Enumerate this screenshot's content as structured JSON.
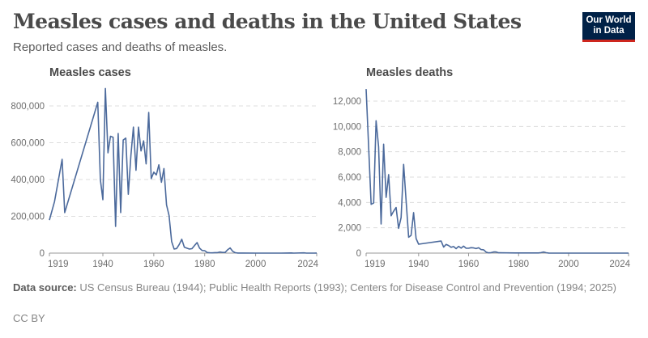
{
  "header": {
    "title": "Measles cases and deaths in the United States",
    "subtitle": "Reported cases and deaths of measles.",
    "logo_text": "Our World in Data"
  },
  "colors": {
    "line": "#4c6a9c",
    "grid": "#dddddd",
    "logo_bg": "#002147",
    "logo_accent": "#ce261e"
  },
  "chart_data": [
    {
      "type": "line",
      "title": "Measles cases",
      "xlabel": "",
      "ylabel": "",
      "xlim": [
        1919,
        2024
      ],
      "ylim": [
        0,
        900000
      ],
      "grid": "horizontal-dashed",
      "x_ticks": [
        "1919",
        "1940",
        "1960",
        "1980",
        "2000",
        "2024"
      ],
      "y_ticks": [
        {
          "value": 0,
          "label": "0"
        },
        {
          "value": 200000,
          "label": "200,000"
        },
        {
          "value": 400000,
          "label": "400,000"
        },
        {
          "value": 600000,
          "label": "600,000"
        },
        {
          "value": 800000,
          "label": "800,000"
        }
      ],
      "x": [
        1919,
        1921,
        1924,
        1925,
        1938,
        1939,
        1940,
        1941,
        1942,
        1943,
        1944,
        1945,
        1946,
        1947,
        1948,
        1949,
        1950,
        1951,
        1952,
        1953,
        1954,
        1955,
        1956,
        1957,
        1958,
        1959,
        1960,
        1961,
        1962,
        1963,
        1964,
        1965,
        1966,
        1967,
        1968,
        1969,
        1970,
        1971,
        1972,
        1973,
        1974,
        1975,
        1976,
        1977,
        1978,
        1979,
        1980,
        1981,
        1982,
        1983,
        1984,
        1985,
        1986,
        1987,
        1988,
        1989,
        1990,
        1991,
        1992,
        1993,
        1995,
        2000,
        2005,
        2010,
        2014,
        2015,
        2019,
        2020,
        2023,
        2024
      ],
      "values": [
        180000,
        280000,
        510000,
        220000,
        820000,
        400000,
        290000,
        895000,
        545000,
        635000,
        630000,
        145000,
        650000,
        220000,
        615000,
        625000,
        320000,
        530000,
        685000,
        450000,
        685000,
        555000,
        610000,
        485000,
        765000,
        405000,
        440000,
        425000,
        480000,
        385000,
        460000,
        262000,
        205000,
        63000,
        22000,
        25000,
        47000,
        75000,
        32000,
        27000,
        22000,
        24000,
        41000,
        57000,
        27000,
        14000,
        13000,
        3000,
        1700,
        1500,
        2600,
        2800,
        6300,
        3700,
        3400,
        18000,
        28000,
        9600,
        2200,
        300,
        300,
        100,
        70,
        60,
        670,
        190,
        1274,
        13,
        60,
        285
      ]
    },
    {
      "type": "line",
      "title": "Measles deaths",
      "xlabel": "",
      "ylabel": "",
      "xlim": [
        1919,
        2024
      ],
      "ylim": [
        0,
        13000
      ],
      "grid": "horizontal-dashed",
      "x_ticks": [
        "1919",
        "1940",
        "1960",
        "1980",
        "2000",
        "2024"
      ],
      "y_ticks": [
        {
          "value": 0,
          "label": "0"
        },
        {
          "value": 2000,
          "label": "2,000"
        },
        {
          "value": 4000,
          "label": "4,000"
        },
        {
          "value": 6000,
          "label": "6,000"
        },
        {
          "value": 8000,
          "label": "8,000"
        },
        {
          "value": 10000,
          "label": "10,000"
        },
        {
          "value": 12000,
          "label": "12,000"
        }
      ],
      "x": [
        1919,
        1921,
        1922,
        1923,
        1924,
        1925,
        1926,
        1927,
        1928,
        1929,
        1930,
        1931,
        1932,
        1933,
        1934,
        1935,
        1936,
        1937,
        1938,
        1939,
        1940,
        1949,
        1950,
        1951,
        1952,
        1953,
        1954,
        1955,
        1956,
        1957,
        1958,
        1959,
        1960,
        1961,
        1962,
        1963,
        1964,
        1965,
        1966,
        1967,
        1968,
        1969,
        1970,
        1971,
        1972,
        1975,
        1980,
        1988,
        1989,
        1990,
        1991,
        1992,
        2000,
        2024
      ],
      "values": [
        12950,
        3850,
        3950,
        10450,
        8400,
        2300,
        8600,
        4400,
        6200,
        2950,
        3300,
        3600,
        1950,
        2800,
        7000,
        4100,
        1250,
        1400,
        3200,
        1150,
        700,
        950,
        470,
        680,
        600,
        460,
        520,
        350,
        530,
        390,
        550,
        385,
        380,
        430,
        410,
        360,
        420,
        280,
        260,
        80,
        20,
        40,
        90,
        90,
        25,
        20,
        10,
        10,
        40,
        90,
        30,
        5,
        1,
        0
      ]
    }
  ],
  "footer": {
    "source_label": "Data source:",
    "source_text": "US Census Bureau (1944); Public Health Reports (1993); Centers for Disease Control and Prevention (1994; 2025)",
    "license": "CC BY"
  }
}
